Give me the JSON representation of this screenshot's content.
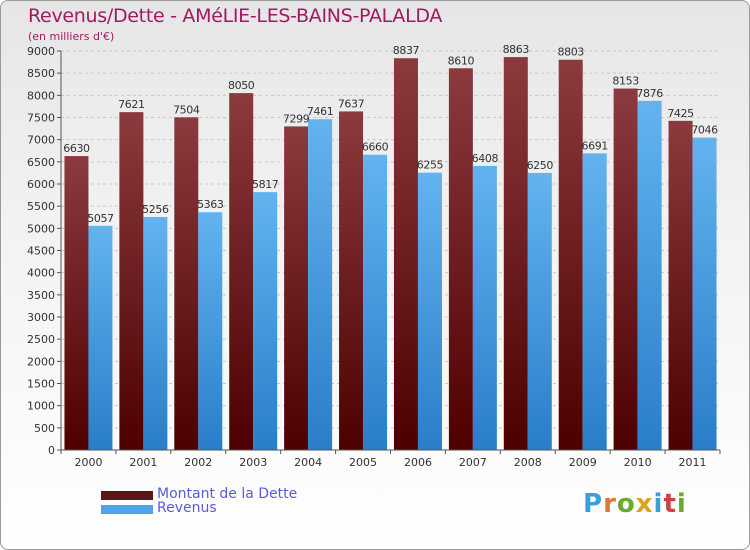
{
  "title": "Revenus/Dette - AMéLIE-LES-BAINS-PALALDA",
  "subtitle": "(en milliers d'€)",
  "brand": "Proxiti",
  "colors": {
    "debt_top": "#8b3a3e",
    "debt_bottom": "#4e0000",
    "revenue_top": "#63b3ef",
    "revenue_bottom": "#2a7ec9",
    "title": "#a2195d",
    "legend_text": "#5a5adc"
  },
  "chart_data": {
    "type": "bar",
    "title": "Revenus/Dette - AMéLIE-LES-BAINS-PALALDA",
    "subtitle": "(en milliers d'€)",
    "categories": [
      "2000",
      "2001",
      "2002",
      "2003",
      "2004",
      "2005",
      "2006",
      "2007",
      "2008",
      "2009",
      "2010",
      "2011"
    ],
    "series": [
      {
        "name": "Montant de la Dette",
        "values": [
          6630,
          7621,
          7504,
          8050,
          7299,
          7637,
          8837,
          8610,
          8863,
          8803,
          8153,
          7425
        ]
      },
      {
        "name": "Revenus",
        "values": [
          5057,
          5256,
          5363,
          5817,
          7461,
          6660,
          6255,
          6408,
          6250,
          6691,
          7876,
          7046
        ]
      }
    ],
    "ylim": [
      0,
      9000
    ],
    "yticks": [
      "0",
      "500",
      "1000",
      "1500",
      "2000",
      "2500",
      "3000",
      "3500",
      "4000",
      "4500",
      "5000",
      "5500",
      "6000",
      "6500",
      "7000",
      "7500",
      "8000",
      "8500",
      "9000"
    ],
    "grid": true,
    "legend_position": "bottom-left"
  }
}
